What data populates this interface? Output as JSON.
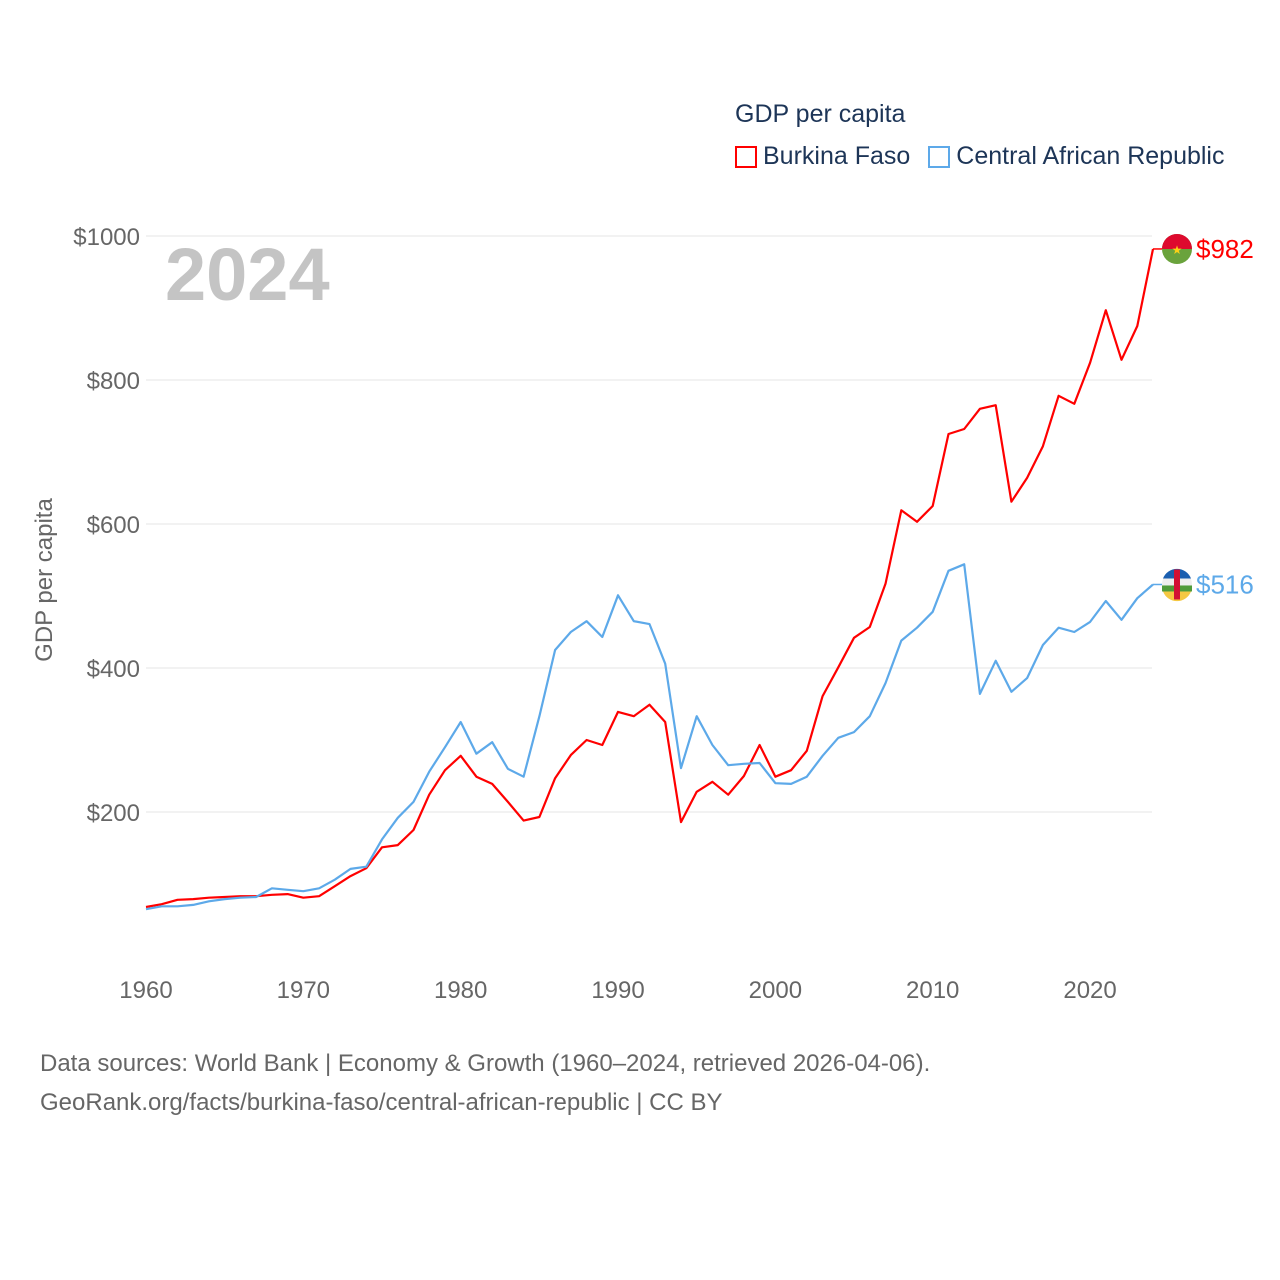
{
  "chart_data": {
    "type": "line",
    "title": "GDP per capita",
    "ylabel": "GDP per capita",
    "xlabel": "",
    "year_label": "2024",
    "ylim": [
      0,
      1000
    ],
    "xlim": [
      1960,
      2024
    ],
    "yticks": [
      200,
      400,
      600,
      800,
      1000
    ],
    "ytick_labels": [
      "$200",
      "$400",
      "$600",
      "$800",
      "$1000"
    ],
    "xticks": [
      1960,
      1970,
      1980,
      1990,
      2000,
      2010,
      2020
    ],
    "xtick_labels": [
      "1960",
      "1970",
      "1980",
      "1990",
      "2000",
      "2010",
      "2020"
    ],
    "grid": true,
    "legend_placement": "top-right",
    "x": [
      1960,
      1961,
      1962,
      1963,
      1964,
      1965,
      1966,
      1967,
      1968,
      1969,
      1970,
      1971,
      1972,
      1973,
      1974,
      1975,
      1976,
      1977,
      1978,
      1979,
      1980,
      1981,
      1982,
      1983,
      1984,
      1985,
      1986,
      1987,
      1988,
      1989,
      1990,
      1991,
      1992,
      1993,
      1994,
      1995,
      1996,
      1997,
      1998,
      1999,
      2000,
      2001,
      2002,
      2003,
      2004,
      2005,
      2006,
      2007,
      2008,
      2009,
      2010,
      2011,
      2012,
      2013,
      2014,
      2015,
      2016,
      2017,
      2018,
      2019,
      2020,
      2021,
      2022,
      2023,
      2024
    ],
    "series": [
      {
        "name": "Burkina Faso",
        "color": "#ff0000",
        "end_label": "$982",
        "flag": "burkina-faso-flag",
        "values": [
          68,
          72,
          78,
          79,
          81,
          82,
          83,
          83,
          85,
          86,
          81,
          83,
          97,
          111,
          122,
          151,
          154,
          175,
          224,
          258,
          278,
          249,
          239,
          214,
          188,
          193,
          247,
          279,
          300,
          293,
          339,
          333,
          349,
          325,
          186,
          228,
          242,
          224,
          250,
          293,
          249,
          258,
          285,
          361,
          401,
          442,
          457,
          517,
          619,
          603,
          625,
          725,
          732,
          760,
          765,
          631,
          664,
          708,
          778,
          767,
          824,
          897,
          828,
          875,
          982
        ]
      },
      {
        "name": "Central African Republic",
        "color": "#5da9e9",
        "end_label": "$516",
        "flag": "central-african-republic-flag",
        "values": [
          65,
          69,
          69,
          71,
          76,
          79,
          81,
          82,
          94,
          92,
          90,
          94,
          106,
          121,
          124,
          162,
          192,
          214,
          256,
          290,
          325,
          281,
          297,
          260,
          249,
          333,
          425,
          450,
          465,
          443,
          501,
          465,
          461,
          406,
          261,
          333,
          293,
          265,
          267,
          268,
          240,
          239,
          249,
          278,
          303,
          311,
          333,
          379,
          438,
          456,
          478,
          535,
          544,
          364,
          410,
          367,
          386,
          432,
          456,
          450,
          464,
          493,
          467,
          497,
          516
        ]
      }
    ]
  },
  "footer": {
    "line1": "Data sources: World Bank | Economy & Growth (1960–2024, retrieved 2026-04-06).",
    "line2": "GeoRank.org/facts/burkina-faso/central-african-republic | CC BY"
  }
}
